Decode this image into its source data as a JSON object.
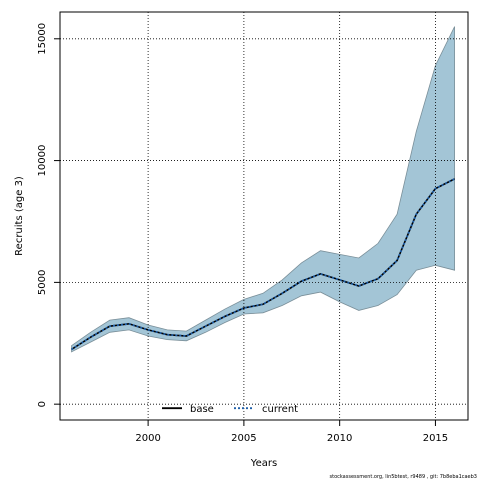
{
  "chart_data": {
    "type": "line",
    "xlabel": "Years",
    "ylabel": "Recruits (age 3)",
    "xlim": [
      1995.4,
      2016.7
    ],
    "ylim": [
      -650,
      16100
    ],
    "x_ticks": [
      2000,
      2005,
      2010,
      2015
    ],
    "y_ticks": [
      0,
      5000,
      10000,
      15000
    ],
    "grid": true,
    "legend_position": "bottom-center",
    "years": [
      1996,
      1997,
      1998,
      1999,
      2000,
      2001,
      2002,
      2003,
      2004,
      2005,
      2006,
      2007,
      2008,
      2009,
      2010,
      2011,
      2012,
      2013,
      2014,
      2015,
      2016
    ],
    "series": [
      {
        "name": "base",
        "color": "#000000",
        "dash": "solid",
        "values": [
          2250,
          2750,
          3200,
          3300,
          3050,
          2850,
          2800,
          3200,
          3600,
          3950,
          4100,
          4550,
          5050,
          5350,
          5100,
          4850,
          5150,
          5900,
          7800,
          8850,
          9250
        ]
      },
      {
        "name": "current",
        "color": "#1f5fa8",
        "dash": "dotted",
        "values": [
          2250,
          2750,
          3200,
          3300,
          3050,
          2850,
          2800,
          3200,
          3600,
          3950,
          4100,
          4550,
          5050,
          5350,
          5100,
          4850,
          5150,
          5900,
          7800,
          8850,
          9250
        ]
      }
    ],
    "band": {
      "color": "#a3c5d6",
      "lower": [
        2150,
        2550,
        2950,
        3050,
        2800,
        2650,
        2600,
        2950,
        3350,
        3700,
        3750,
        4050,
        4450,
        4600,
        4200,
        3850,
        4050,
        4500,
        5500,
        5700,
        5500
      ],
      "upper": [
        2400,
        2950,
        3450,
        3550,
        3250,
        3050,
        3000,
        3450,
        3900,
        4300,
        4550,
        5100,
        5800,
        6300,
        6150,
        6000,
        6600,
        7800,
        11200,
        13900,
        15500
      ]
    },
    "footnote": "stockassessment.org, lin5btest, r9489 , git: 7b8eba1caeb3"
  }
}
